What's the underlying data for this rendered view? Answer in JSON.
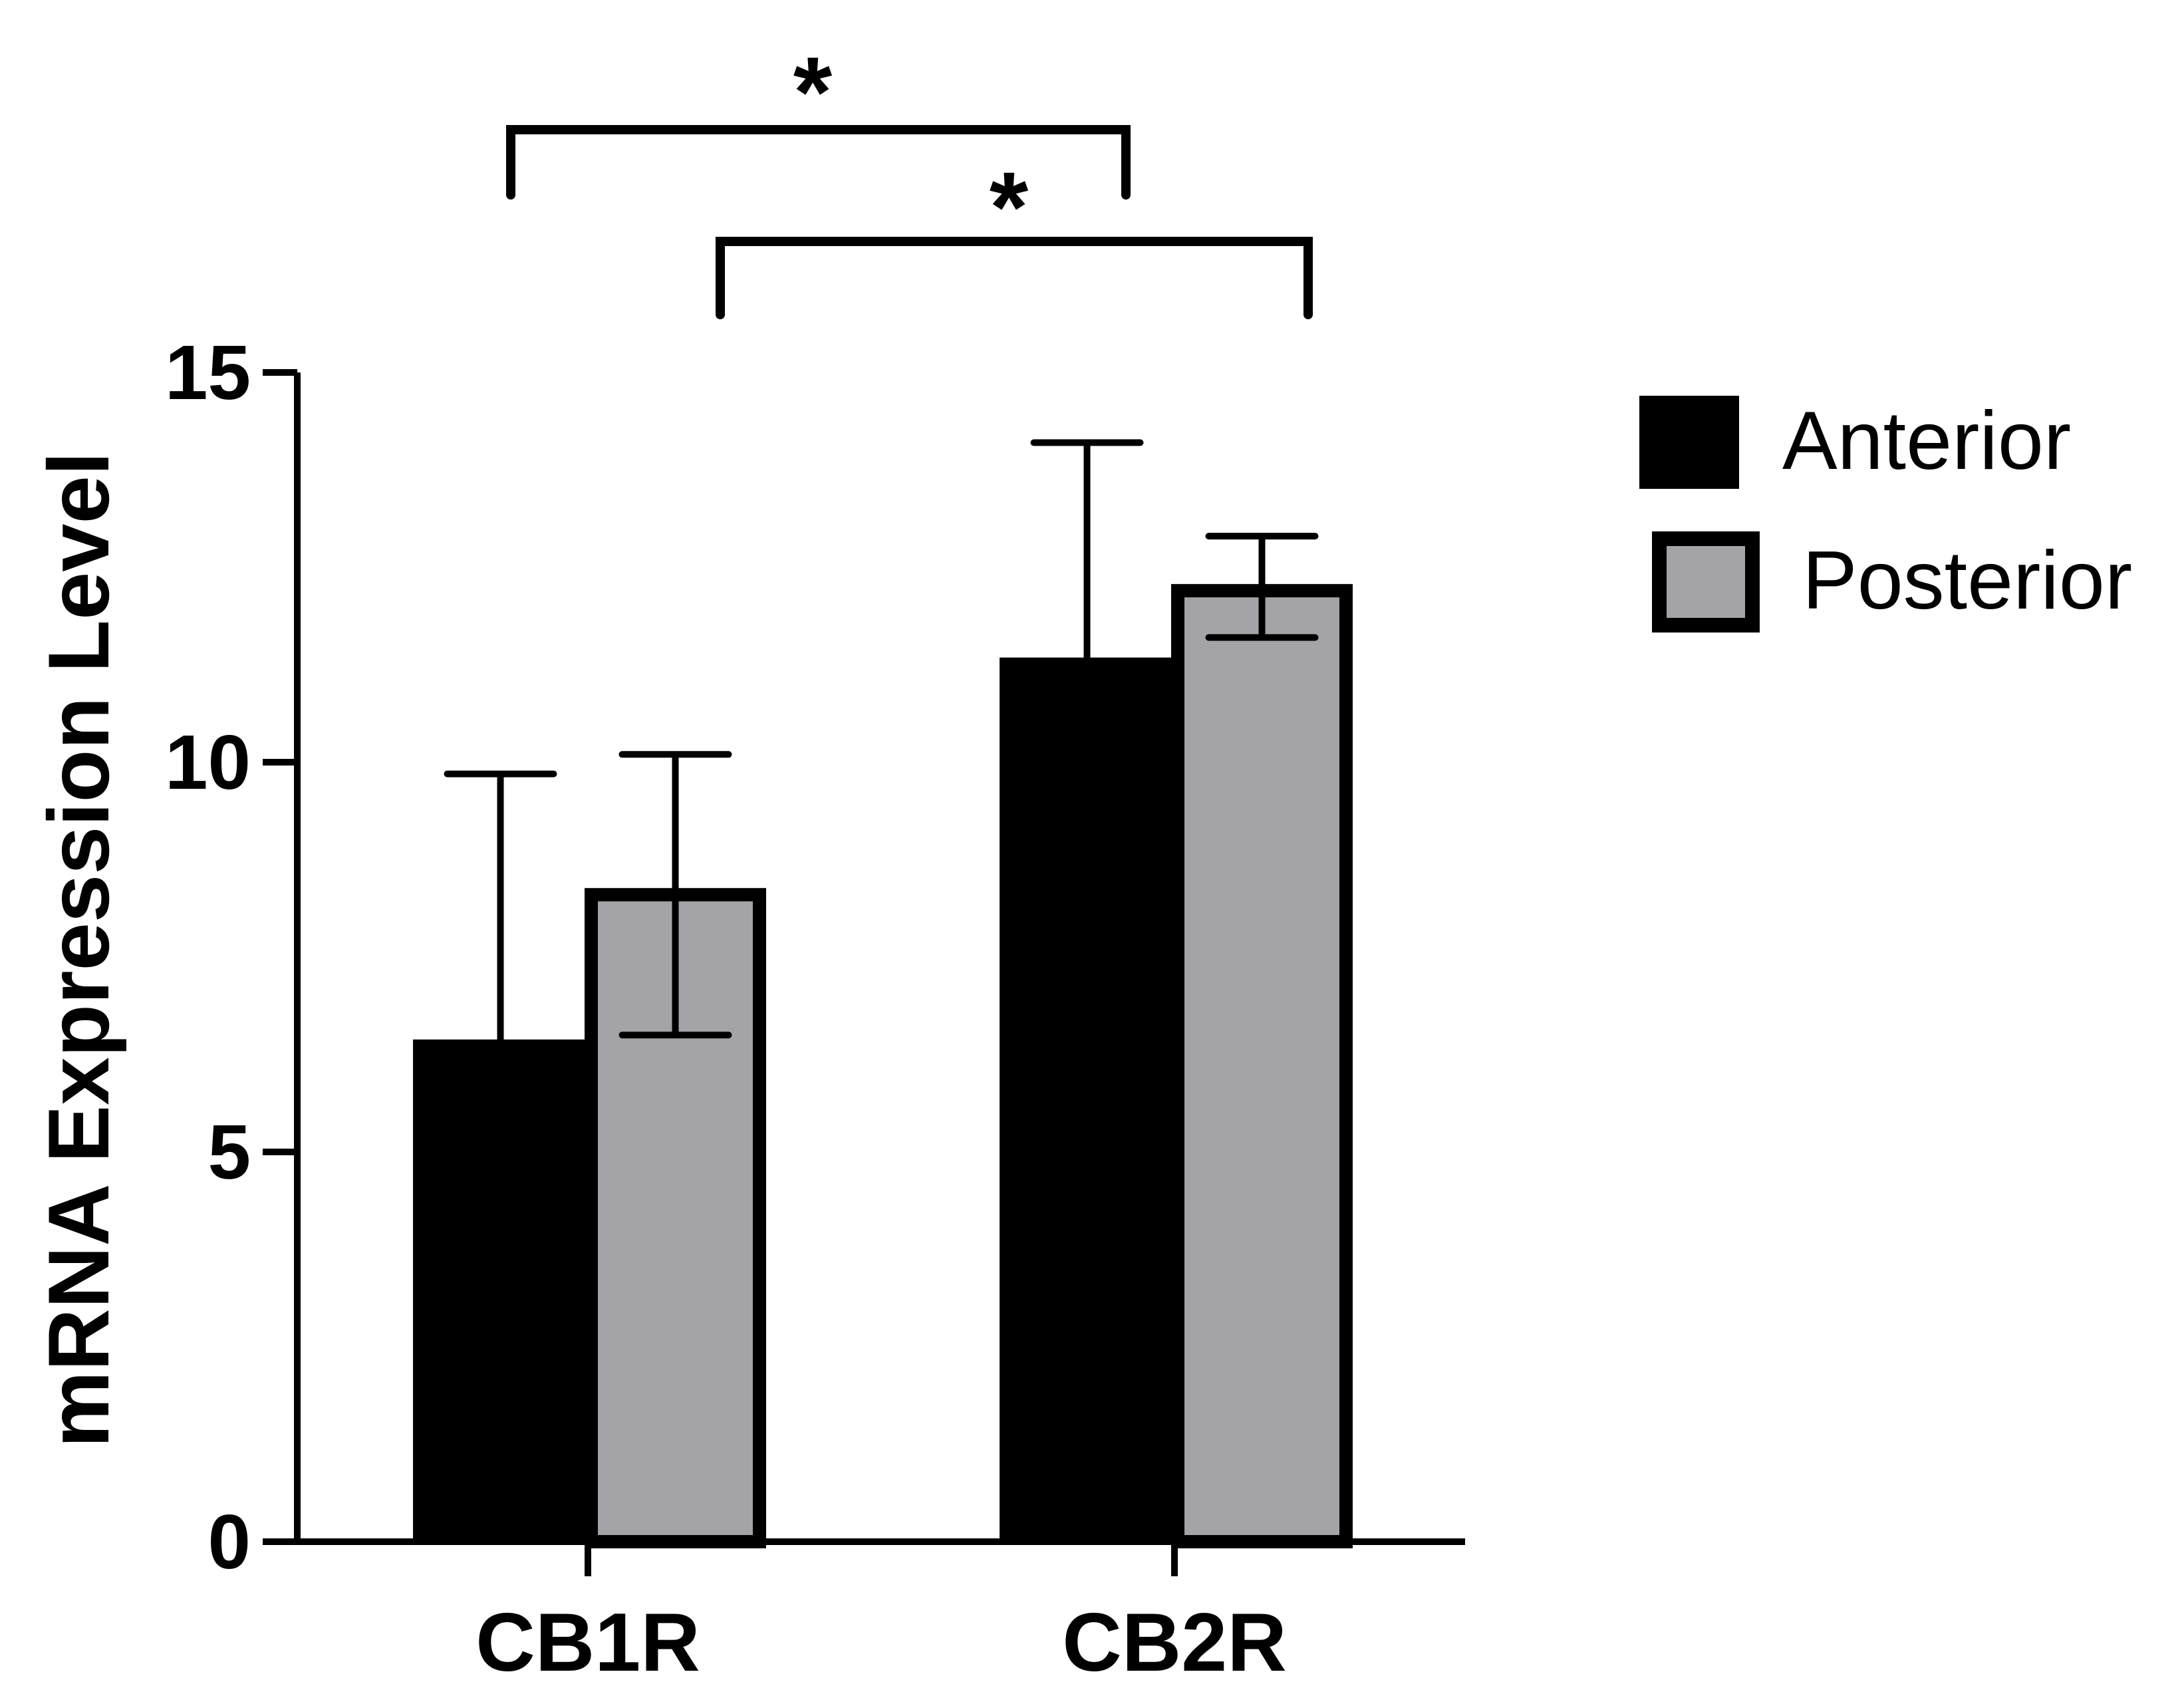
{
  "chart_data": {
    "type": "bar",
    "title": "",
    "xlabel": "",
    "ylabel": "mRNA Expression Level",
    "ylim": [
      0,
      15
    ],
    "yticks": [
      0,
      5,
      10,
      15
    ],
    "grid": false,
    "legend_position": "top-right",
    "categories": [
      "CB1R",
      "CB2R"
    ],
    "series": [
      {
        "name": "Anterior",
        "color": "#000000",
        "values": [
          6.4,
          11.3
        ],
        "error_upper": [
          9.85,
          14.1
        ],
        "error_lower": [
          null,
          null
        ]
      },
      {
        "name": "Posterior",
        "color": "#a3a3a8",
        "values": [
          8.3,
          12.2
        ],
        "error_upper": [
          10.1,
          12.9
        ],
        "error_lower": [
          6.5,
          11.6
        ]
      }
    ],
    "annotations": [
      {
        "text": "*",
        "from": {
          "category": "CB1R",
          "series": "Anterior"
        },
        "to": {
          "category": "CB2R",
          "series": "Anterior"
        }
      },
      {
        "text": "*",
        "from": {
          "category": "CB1R",
          "series": "Posterior"
        },
        "to": {
          "category": "CB2R",
          "series": "Posterior"
        }
      }
    ]
  }
}
